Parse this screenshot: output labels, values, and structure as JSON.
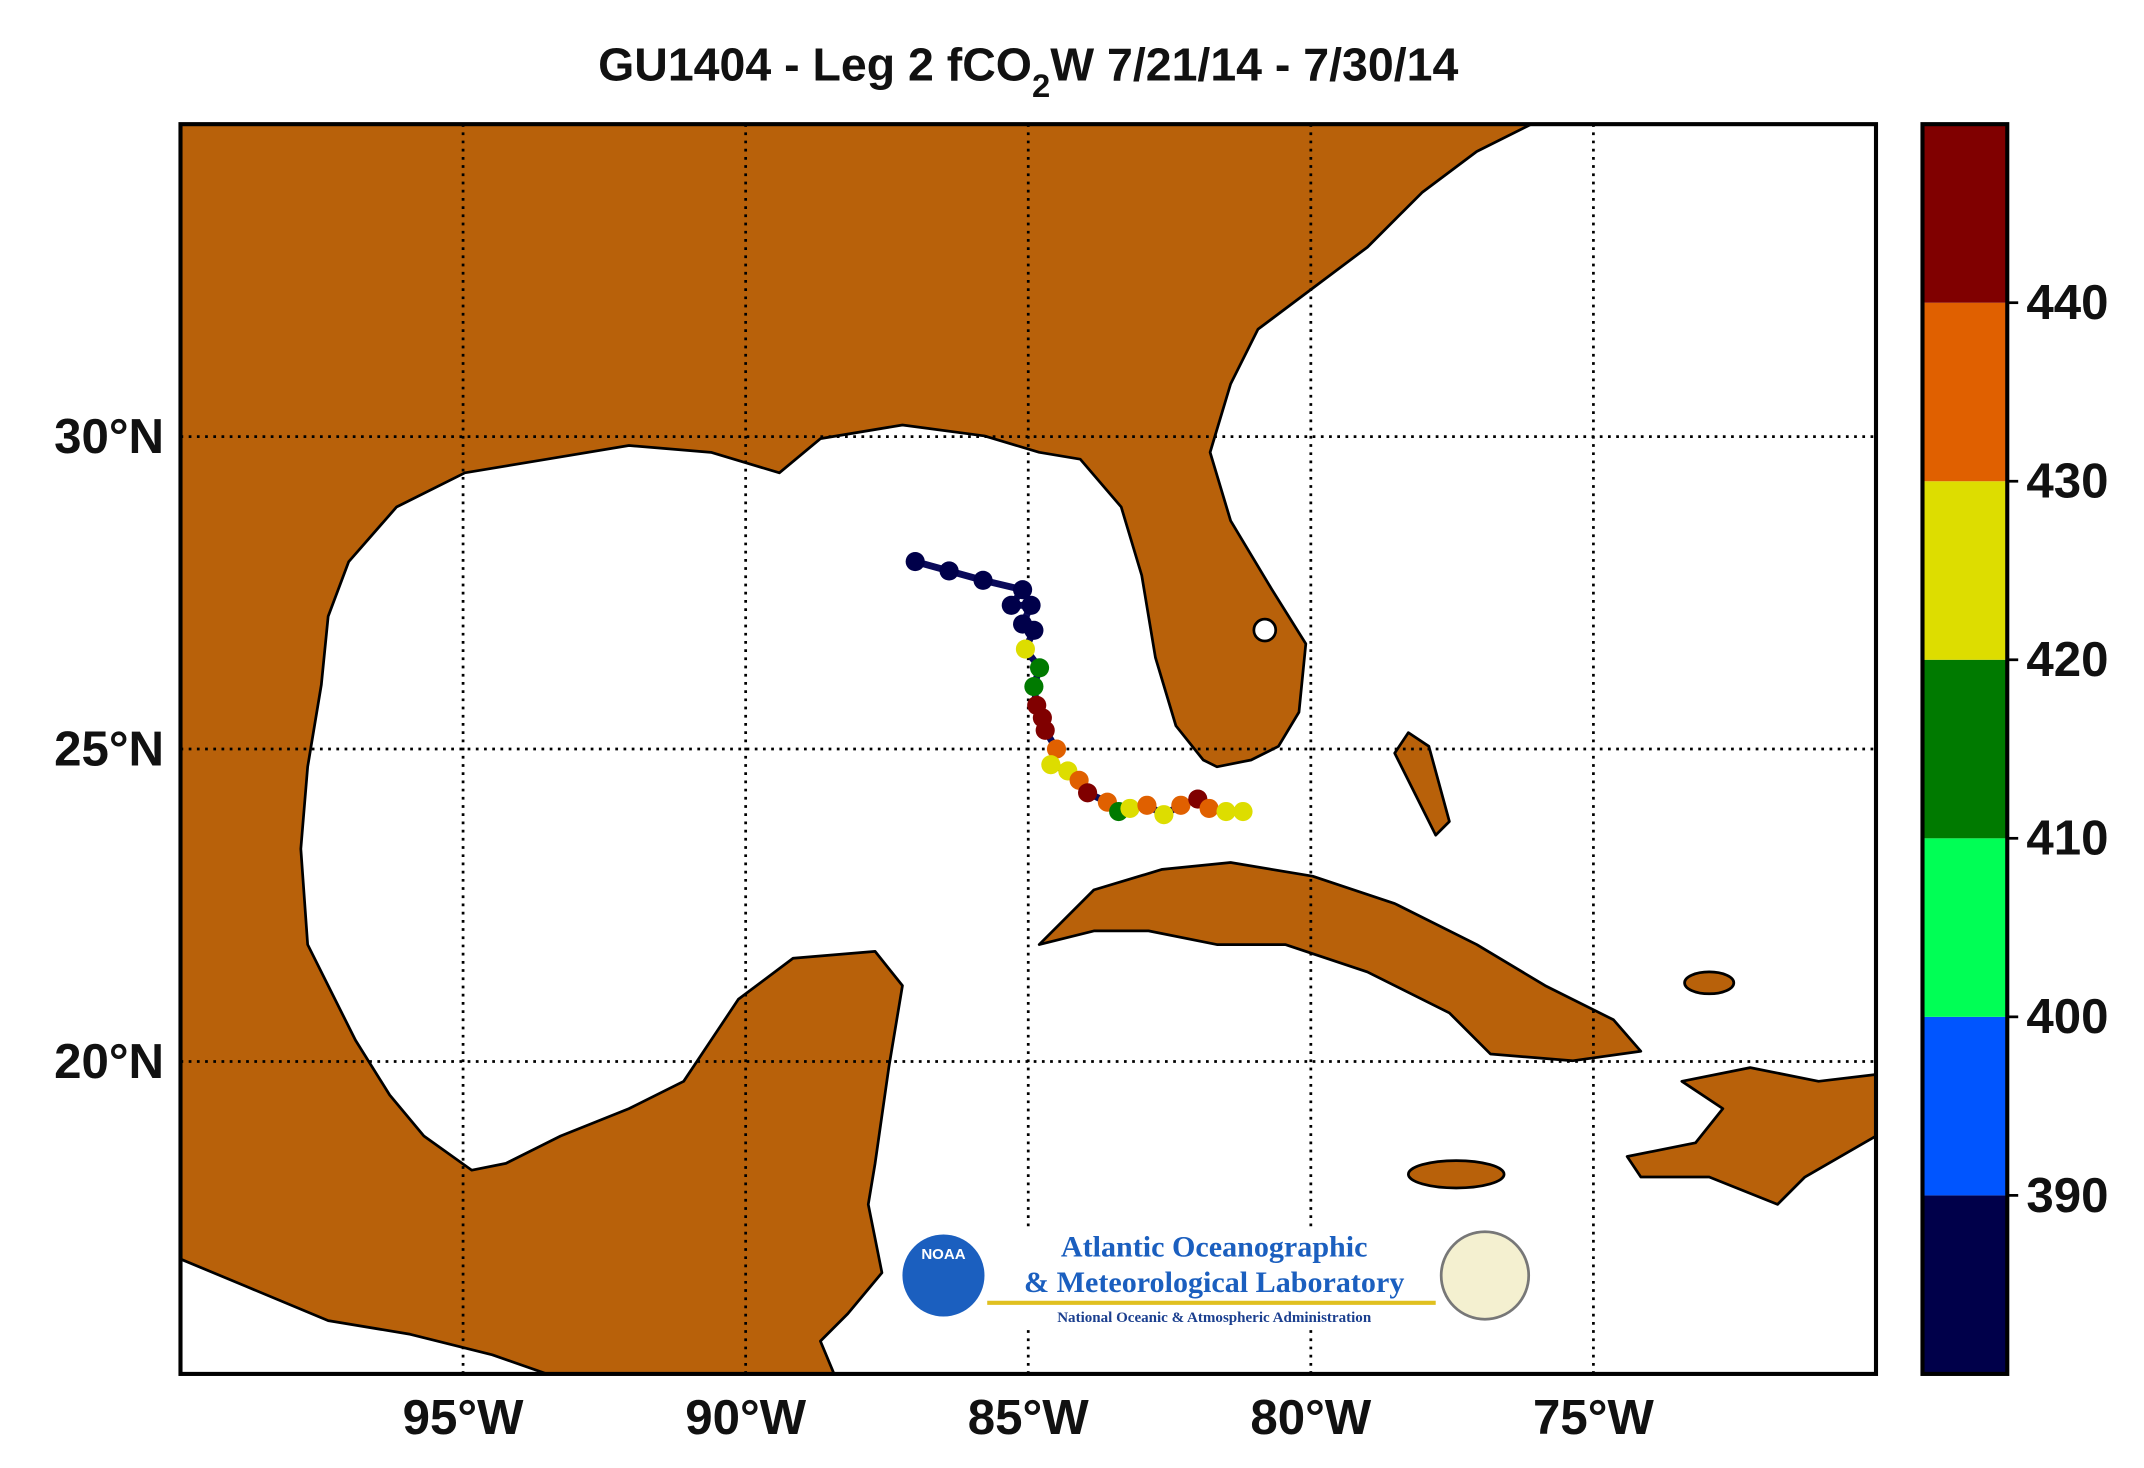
{
  "chart_data": {
    "type": "map",
    "title": [
      "GU1404 - Leg 2 fCO",
      "2",
      "W 7/21/14 - 7/30/14"
    ],
    "xlim": [
      -100,
      -70
    ],
    "ylim": [
      15,
      35
    ],
    "xticks": [
      {
        "value": -95,
        "label": "95°W"
      },
      {
        "value": -90,
        "label": "90°W"
      },
      {
        "value": -85,
        "label": "85°W"
      },
      {
        "value": -80,
        "label": "80°W"
      },
      {
        "value": -75,
        "label": "75°W"
      }
    ],
    "yticks": [
      {
        "value": 20,
        "label": "20°N"
      },
      {
        "value": 25,
        "label": "25°N"
      },
      {
        "value": 30,
        "label": "30°N"
      }
    ],
    "grid": true,
    "track": {
      "lon": [
        -87.0,
        -86.4,
        -85.8,
        -85.1,
        -85.3,
        -84.95,
        -85.1,
        -84.9,
        -85.05,
        -84.8,
        -84.9,
        -84.85,
        -84.75,
        -84.7,
        -84.5,
        -84.6,
        -84.3,
        -84.1,
        -83.95,
        -83.6,
        -83.4,
        -83.2,
        -82.9,
        -82.6,
        -82.3,
        -82.0,
        -81.8,
        -81.5,
        -81.2
      ],
      "lat": [
        28.0,
        27.85,
        27.7,
        27.55,
        27.3,
        27.3,
        27.0,
        26.9,
        26.6,
        26.3,
        26.0,
        25.7,
        25.5,
        25.3,
        25.0,
        24.75,
        24.65,
        24.5,
        24.3,
        24.15,
        24.0,
        24.05,
        24.1,
        23.95,
        24.1,
        24.2,
        24.05,
        24.0,
        24.0
      ],
      "values": [
        386,
        385,
        385,
        384,
        386,
        385,
        387,
        389,
        425,
        415,
        412,
        445,
        443,
        441,
        436,
        424,
        428,
        433,
        444,
        437,
        415,
        426,
        438,
        427,
        432,
        442,
        435,
        425,
        422
      ]
    },
    "colorbar": {
      "lim": [
        380,
        450
      ],
      "bins": [
        380,
        390,
        400,
        410,
        420,
        430,
        440,
        450
      ],
      "colors": [
        "#00004a",
        "#0055ff",
        "#00ff55",
        "#007a00",
        "#dddd00",
        "#e06000",
        "#800000"
      ],
      "ticks": [
        390,
        400,
        410,
        420,
        430,
        440
      ]
    },
    "logo": {
      "badge": "NOAA",
      "line1": "Atlantic Oceanographic",
      "line2": "& Meteorological Laboratory",
      "line3": "National Oceanic & Atmospheric Administration"
    }
  }
}
